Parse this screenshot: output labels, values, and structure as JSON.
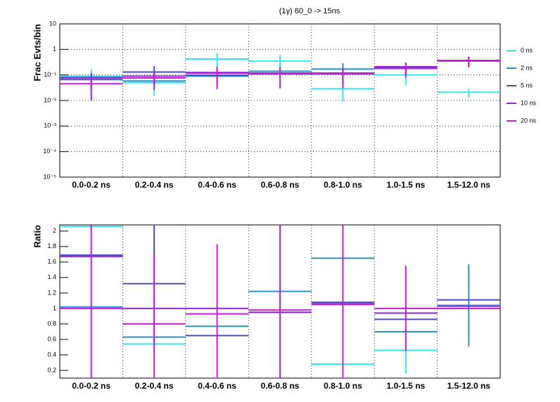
{
  "chart_data": [
    {
      "type": "errorbar",
      "title": "(1γ) 60_0 -> 15ns",
      "y_label": "Frac Evts/bin",
      "log_y": true,
      "grid": true,
      "legend": "right",
      "categories": [
        "0.0-0.2 ns",
        "0.2-0.4 ns",
        "0.4-0.6 ns",
        "0.6-0.8 ns",
        "0.8-1.0 ns",
        "1.0-1.5 ns",
        "1.5-12.0 ns"
      ],
      "ylim": [
        1e-05,
        10
      ],
      "yticks": [
        {
          "value": 1e-05,
          "label": "10⁻⁵"
        },
        {
          "value": 0.0001,
          "label": "10⁻⁴"
        },
        {
          "value": 0.001,
          "label": "10⁻³"
        },
        {
          "value": 0.01,
          "label": "10⁻²"
        },
        {
          "value": 0.1,
          "label": "10⁻¹"
        },
        1,
        10
      ],
      "series": [
        {
          "name": "0 ns",
          "color": "#36e8f0",
          "values": [
            0.09,
            0.05,
            0.42,
            0.35,
            0.029,
            0.1,
            0.021
          ],
          "errors": [
            0.08,
            0.035,
            0.3,
            0.25,
            0.02,
            0.06,
            0.008
          ]
        },
        {
          "name": "2 ns",
          "color": "#2a8fd0",
          "values": [
            0.076,
            0.058,
            0.09,
            0.14,
            0.17,
            0.18,
            0.37
          ],
          "errors": [
            0.04,
            0.03,
            0.05,
            0.07,
            0.12,
            0.09,
            0.15
          ]
        },
        {
          "name": "5 ns",
          "color": "#4a4cc0",
          "values": [
            0.066,
            0.13,
            0.097,
            0.118,
            0.118,
            0.2,
            0.37
          ],
          "errors": [
            0.04,
            0.09,
            0.06,
            0.07,
            0.07,
            0.1,
            0.15
          ]
        },
        {
          "name": "10 ns",
          "color": "#8a2ad8",
          "values": [
            0.08,
            0.09,
            0.125,
            0.11,
            0.11,
            0.21,
            0.37
          ],
          "errors": [
            0.04,
            0.05,
            0.07,
            0.07,
            0.07,
            0.1,
            0.15
          ]
        },
        {
          "name": "20 ns",
          "color": "#c81ed8",
          "values": [
            0.045,
            0.076,
            0.118,
            0.11,
            0.11,
            0.18,
            0.35
          ],
          "errors": [
            0.035,
            0.05,
            0.09,
            0.08,
            0.08,
            0.1,
            0.15
          ]
        }
      ]
    },
    {
      "type": "errorbar",
      "y_label": "Ratio",
      "log_y": false,
      "grid": true,
      "categories": [
        "0.0-0.2 ns",
        "0.2-0.4 ns",
        "0.4-0.6 ns",
        "0.6-0.8 ns",
        "0.8-1.0 ns",
        "1.0-1.5 ns",
        "1.5-12.0 ns"
      ],
      "ylim": [
        0.1,
        2.08
      ],
      "yticks": [
        0.2,
        0.4,
        0.6,
        0.8,
        1,
        1.2,
        1.4,
        1.6,
        1.8,
        2
      ],
      "series": [
        {
          "color": "#36e8f0",
          "values": [
            2.06,
            0.54,
            null,
            null,
            0.28,
            0.46,
            null
          ],
          "errors": [
            null,
            0.1,
            null,
            null,
            null,
            0.3,
            null
          ]
        },
        {
          "color": "#2a8fd0",
          "values": [
            1.02,
            0.63,
            0.77,
            1.22,
            1.65,
            0.7,
            1.04
          ],
          "errors": [
            null,
            null,
            null,
            null,
            null,
            null,
            0.53
          ]
        },
        {
          "color": "#4a4cc0",
          "values": [
            1.69,
            1.32,
            0.65,
            0.95,
            1.08,
            0.86,
            1.11
          ],
          "errors": [
            null,
            0.8,
            null,
            null,
            null,
            null,
            null
          ]
        },
        {
          "color": "#8a2ad8",
          "values": [
            1.67,
            1.0,
            1.0,
            0.95,
            1.06,
            0.94,
            1.03
          ],
          "errors": [
            null,
            null,
            null,
            null,
            null,
            null,
            null
          ]
        },
        {
          "color": "#c81ed8",
          "values": [
            1.0,
            0.8,
            0.93,
            0.98,
            1.05,
            1.0,
            1.0
          ],
          "errors": [
            1.1,
            0.9,
            0.9,
            1.2,
            1.3,
            0.55,
            null
          ]
        }
      ]
    }
  ]
}
